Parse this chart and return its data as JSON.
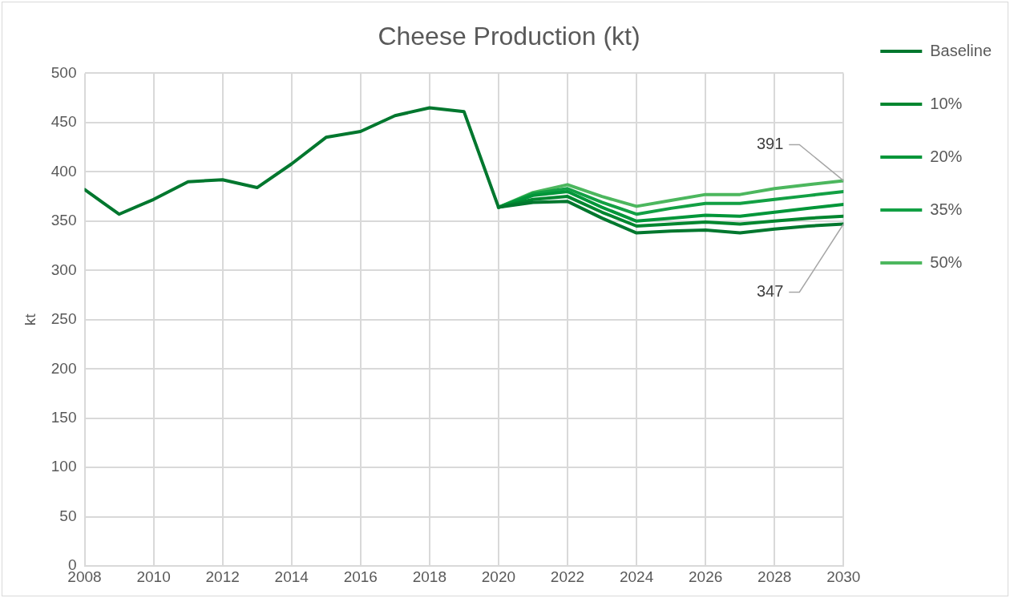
{
  "chart_data": {
    "type": "line",
    "title": "Cheese Production (kt)",
    "ylabel": "kt",
    "x": [
      2008,
      2009,
      2010,
      2011,
      2012,
      2013,
      2014,
      2015,
      2016,
      2017,
      2018,
      2019,
      2020,
      2021,
      2022,
      2023,
      2024,
      2025,
      2026,
      2027,
      2028,
      2029,
      2030
    ],
    "series": [
      {
        "name": "Baseline",
        "color": "#00772e",
        "values": [
          382,
          357,
          372,
          390,
          392,
          384,
          408,
          435,
          441,
          457,
          465,
          461,
          364,
          369,
          370,
          353,
          338,
          340,
          341,
          338,
          342,
          345,
          347
        ]
      },
      {
        "name": "10%",
        "color": "#00862f",
        "values": [
          null,
          null,
          null,
          null,
          null,
          null,
          null,
          null,
          null,
          null,
          null,
          null,
          364,
          372,
          375,
          359,
          345,
          347,
          349,
          347,
          350,
          353,
          355
        ]
      },
      {
        "name": "20%",
        "color": "#009639",
        "values": [
          null,
          null,
          null,
          null,
          null,
          null,
          null,
          null,
          null,
          null,
          null,
          null,
          364,
          376,
          380,
          364,
          350,
          353,
          356,
          355,
          359,
          363,
          367
        ]
      },
      {
        "name": "35%",
        "color": "#12a044",
        "values": [
          null,
          null,
          null,
          null,
          null,
          null,
          null,
          null,
          null,
          null,
          null,
          null,
          364,
          378,
          383,
          369,
          357,
          363,
          368,
          368,
          372,
          376,
          380
        ]
      },
      {
        "name": "50%",
        "color": "#4cb75e",
        "values": [
          null,
          null,
          null,
          null,
          null,
          null,
          null,
          null,
          null,
          null,
          null,
          null,
          364,
          379,
          387,
          375,
          365,
          371,
          377,
          377,
          383,
          387,
          391
        ]
      }
    ],
    "annotations": [
      {
        "text": "391",
        "x": 2030,
        "y": 391
      },
      {
        "text": "347",
        "x": 2030,
        "y": 347
      }
    ],
    "xlim": [
      2008,
      2030
    ],
    "xticks": [
      2008,
      2010,
      2012,
      2014,
      2016,
      2018,
      2020,
      2022,
      2024,
      2026,
      2028,
      2030
    ],
    "ylim": [
      0,
      500
    ],
    "yticks": [
      0,
      50,
      100,
      150,
      200,
      250,
      300,
      350,
      400,
      450,
      500
    ],
    "grid": true,
    "legend": "right",
    "marker": "none",
    "line_style": "solid"
  }
}
